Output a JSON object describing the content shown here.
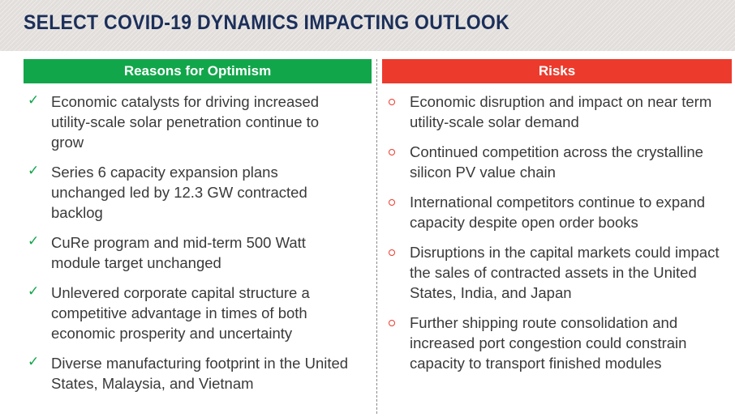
{
  "title": "SELECT COVID-19 DYNAMICS IMPACTING OUTLOOK",
  "optimism": {
    "header": "Reasons for Optimism",
    "items": [
      "Economic catalysts for driving increased utility-scale solar penetration continue to grow",
      "Series 6 capacity expansion plans unchanged led by 12.3 GW contracted backlog",
      "CuRe program and mid-term 500 Watt module target unchanged",
      "Unlevered corporate capital structure a competitive advantage in times of both economic prosperity and uncertainty",
      "Diverse manufacturing footprint in the United States, Malaysia, and Vietnam"
    ]
  },
  "risks": {
    "header": "Risks",
    "items": [
      "Economic disruption and impact on near term utility-scale solar demand",
      "Continued competition across the crystalline silicon PV value chain",
      "International competitors continue to expand capacity despite open order books",
      "Disruptions in the capital markets could impact the sales of contracted assets in the United States, India, and Japan",
      "Further shipping route consolidation and increased port congestion could constrain capacity to transport finished modules"
    ]
  },
  "colors": {
    "title_text": "#1b2f5a",
    "optimism_header_bg": "#12a64b",
    "risks_header_bg": "#ec3a2c",
    "body_text": "#3a3a3a"
  },
  "icons": {
    "optimism_bullet": "check-icon",
    "risks_bullet": "hollow-circle-icon"
  }
}
